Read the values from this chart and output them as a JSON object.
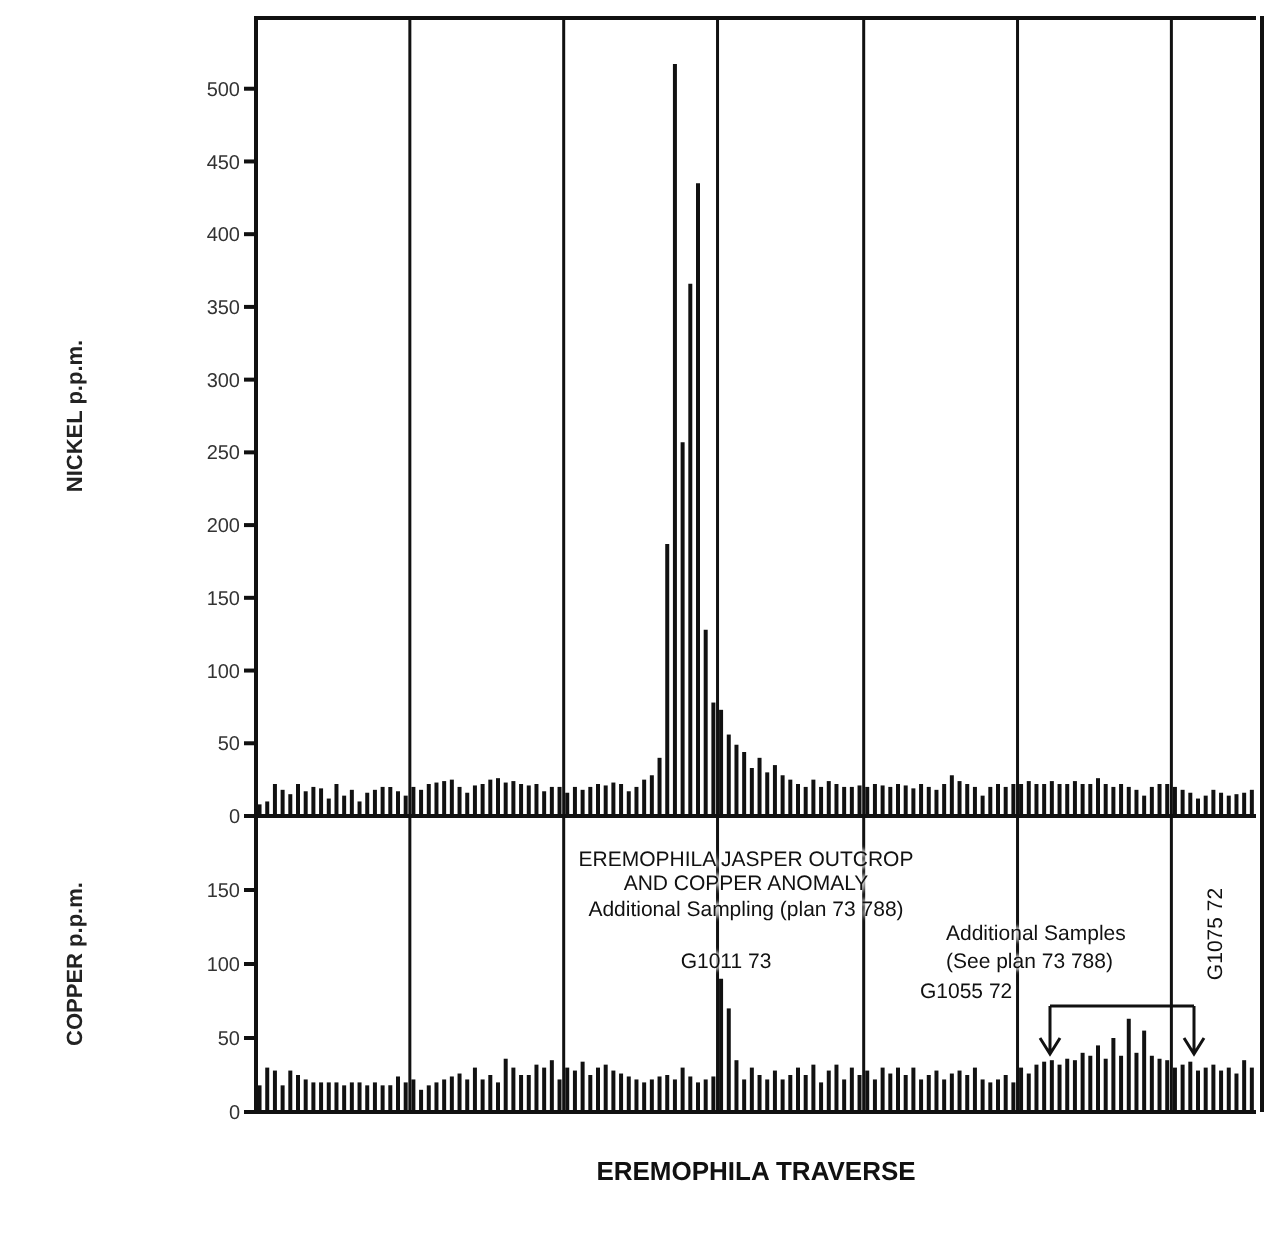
{
  "chart_data": [
    {
      "type": "bar",
      "ylabel": "NICKEL p.p.m.",
      "categories": [
        null,
        null,
        null,
        null,
        null,
        null,
        null,
        null,
        null,
        null,
        null,
        null,
        null,
        null,
        null,
        null,
        null,
        null,
        null,
        null,
        null,
        null,
        null,
        null,
        null,
        null,
        null,
        null,
        null,
        null,
        null,
        null,
        null,
        null,
        null,
        null,
        null,
        null,
        null,
        null,
        null,
        null,
        null,
        null,
        null,
        null,
        null,
        null,
        null,
        null,
        null,
        null,
        null,
        null,
        null,
        null,
        null,
        null,
        null,
        null,
        null,
        null,
        null,
        null,
        null,
        null,
        null,
        null,
        null,
        null,
        null,
        null,
        null,
        null,
        null,
        null,
        null,
        null,
        null,
        null,
        null,
        null,
        null,
        null,
        null,
        null,
        null,
        null,
        null,
        null,
        null,
        null,
        null,
        null,
        null,
        null,
        null,
        null,
        null,
        null,
        null,
        null,
        null,
        null,
        null,
        null,
        null,
        null,
        null,
        null,
        null,
        null,
        null,
        null,
        null,
        null,
        null,
        null,
        null,
        null,
        null,
        null,
        null,
        null,
        null,
        null,
        null,
        null,
        null,
        null
      ],
      "values": [
        8,
        10,
        22,
        18,
        15,
        22,
        17,
        20,
        19,
        12,
        22,
        14,
        18,
        10,
        16,
        18,
        20,
        20,
        17,
        14,
        20,
        18,
        22,
        23,
        24,
        25,
        20,
        16,
        21,
        22,
        25,
        26,
        23,
        24,
        22,
        21,
        22,
        17,
        20,
        20,
        16,
        20,
        18,
        20,
        22,
        21,
        23,
        22,
        17,
        20,
        25,
        28,
        40,
        187,
        517,
        257,
        366,
        435,
        128,
        78,
        73,
        56,
        49,
        44,
        33,
        40,
        30,
        35,
        28,
        25,
        22,
        20,
        25,
        20,
        24,
        22,
        20,
        20,
        21,
        20,
        22,
        21,
        20,
        22,
        21,
        19,
        22,
        20,
        18,
        22,
        28,
        24,
        22,
        20,
        14,
        20,
        22,
        20,
        22,
        22,
        24,
        22,
        22,
        24,
        22,
        22,
        24,
        22,
        22,
        26,
        22,
        20,
        22,
        20,
        18,
        14,
        20,
        22,
        22,
        20,
        18,
        16,
        12,
        14,
        18,
        16,
        14,
        15,
        16,
        18
      ],
      "color": "#111111",
      "ylim": [
        0,
        550
      ],
      "yticks": [
        0,
        50,
        100,
        150,
        200,
        250,
        300,
        350,
        400,
        450,
        500
      ],
      "tick_labels": "y"
    },
    {
      "type": "bar",
      "ylabel": "COPPER p.p.m.",
      "xlabel": "EREMOPHILA TRAVERSE",
      "categories": [
        null,
        null,
        null,
        null,
        null,
        null,
        null,
        null,
        null,
        null,
        null,
        null,
        null,
        null,
        null,
        null,
        null,
        null,
        null,
        null,
        null,
        null,
        null,
        null,
        null,
        null,
        null,
        null,
        null,
        null,
        null,
        null,
        null,
        null,
        null,
        null,
        null,
        null,
        null,
        null,
        null,
        null,
        null,
        null,
        null,
        null,
        null,
        null,
        null,
        null,
        null,
        null,
        null,
        null,
        null,
        null,
        null,
        null,
        null,
        null,
        null,
        null,
        null,
        null,
        null,
        null,
        null,
        null,
        null,
        null,
        null,
        null,
        null,
        null,
        null,
        null,
        null,
        null,
        null,
        null,
        null,
        null,
        null,
        null,
        null,
        null,
        null,
        null,
        null,
        null,
        null,
        null,
        null,
        null,
        null,
        null,
        null,
        null,
        null,
        null,
        null,
        null,
        null,
        null,
        null,
        null,
        null,
        null,
        null,
        null,
        null,
        null,
        null,
        null,
        null,
        null,
        null,
        null,
        null,
        null,
        null,
        null,
        null,
        null,
        null,
        null,
        null,
        null,
        null,
        null
      ],
      "values": [
        18,
        30,
        28,
        18,
        28,
        25,
        22,
        20,
        20,
        20,
        20,
        18,
        20,
        20,
        18,
        20,
        18,
        18,
        24,
        20,
        22,
        15,
        18,
        20,
        22,
        24,
        26,
        22,
        30,
        22,
        25,
        20,
        36,
        30,
        25,
        25,
        32,
        30,
        35,
        22,
        30,
        28,
        34,
        25,
        30,
        32,
        28,
        26,
        24,
        22,
        20,
        22,
        24,
        25,
        22,
        30,
        24,
        20,
        22,
        24,
        90,
        70,
        35,
        22,
        30,
        25,
        22,
        28,
        22,
        25,
        30,
        25,
        32,
        20,
        28,
        32,
        22,
        30,
        25,
        28,
        22,
        30,
        26,
        30,
        25,
        30,
        22,
        25,
        28,
        22,
        26,
        28,
        25,
        30,
        22,
        20,
        22,
        25,
        20,
        30,
        26,
        32,
        34,
        35,
        32,
        36,
        35,
        40,
        38,
        45,
        36,
        50,
        38,
        63,
        40,
        55,
        38,
        36,
        35,
        30,
        32,
        34,
        28,
        30,
        32,
        28,
        30,
        26,
        35,
        30
      ],
      "color": "#111111",
      "ylim": [
        0,
        200
      ],
      "yticks": [
        0,
        50,
        100,
        150
      ],
      "tick_labels": "y",
      "annotations": [
        "EREMOPHILA JASPER OUTCROP",
        "AND COPPER ANOMALY",
        "Additional Sampling (plan 73 788)",
        "G1011 73",
        "Additional Samples",
        "(See plan 73 788)",
        "G1055 72",
        "G1075 72"
      ]
    }
  ]
}
